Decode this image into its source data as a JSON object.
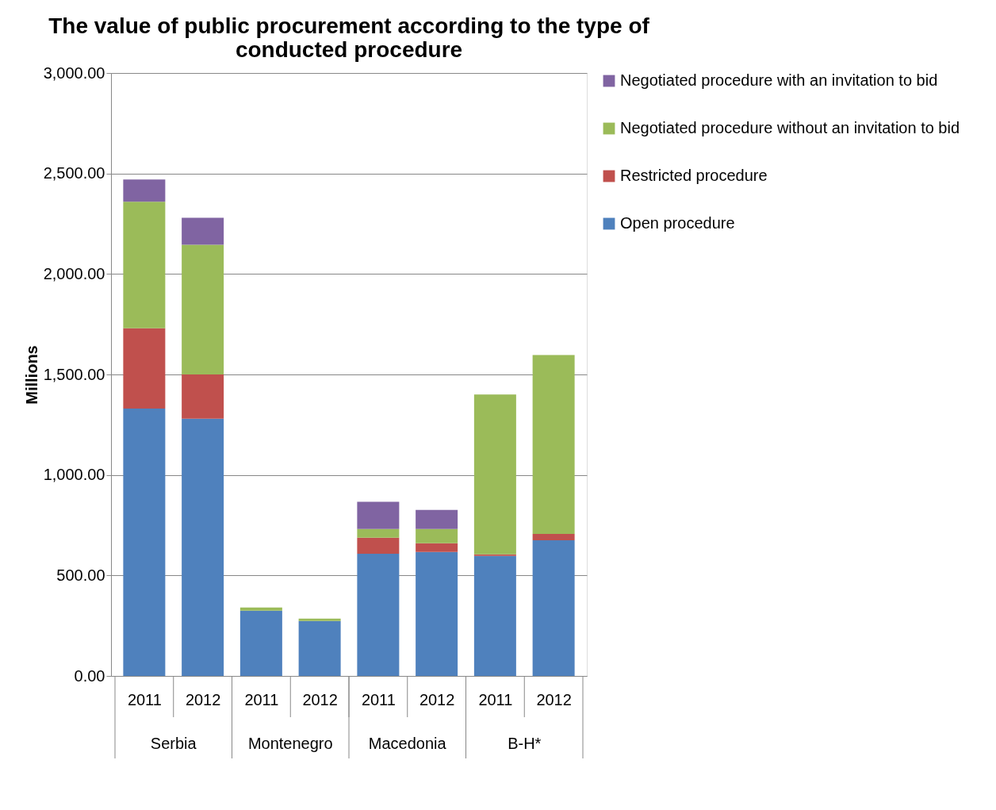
{
  "chart_data": {
    "type": "bar",
    "stacked": true,
    "title": "The value of public procurement according to the type of conducted procedure",
    "ylabel": "Millions",
    "categories": [
      "2011",
      "2012",
      "2011",
      "2012",
      "2011",
      "2012",
      "2011",
      "2012"
    ],
    "annotations": [
      "Serbia",
      "Montenegro",
      "Macedonia",
      "B-H*"
    ],
    "series": [
      {
        "name": "Open procedure",
        "color": "#4f81bd",
        "values": [
          1330,
          1280,
          325,
          273,
          608,
          617,
          597,
          675
        ]
      },
      {
        "name": "Restricted procedure",
        "color": "#c0504d",
        "values": [
          400,
          220,
          0,
          0,
          80,
          43,
          8,
          32
        ]
      },
      {
        "name": "Negotiated procedure without an invitation to bid",
        "color": "#9bbb59",
        "values": [
          630,
          645,
          15,
          12,
          43,
          71,
          795,
          890
        ]
      },
      {
        "name": "Negotiated procedure with an invitation to bid",
        "color": "#8064a2",
        "values": [
          110,
          135,
          0,
          0,
          135,
          95,
          0,
          0
        ]
      }
    ],
    "ylim": [
      0,
      3000
    ],
    "yticks": [
      {
        "value": 0,
        "label": "0.00"
      },
      {
        "value": 500,
        "label": "500.00"
      },
      {
        "value": 1000,
        "label": "1,000.00"
      },
      {
        "value": 1500,
        "label": "1,500.00"
      },
      {
        "value": 2000,
        "label": "2,000.00"
      },
      {
        "value": 2500,
        "label": "2,500.00"
      },
      {
        "value": 3000,
        "label": "3,000.00"
      }
    ],
    "grid": "y",
    "legend": "right"
  }
}
